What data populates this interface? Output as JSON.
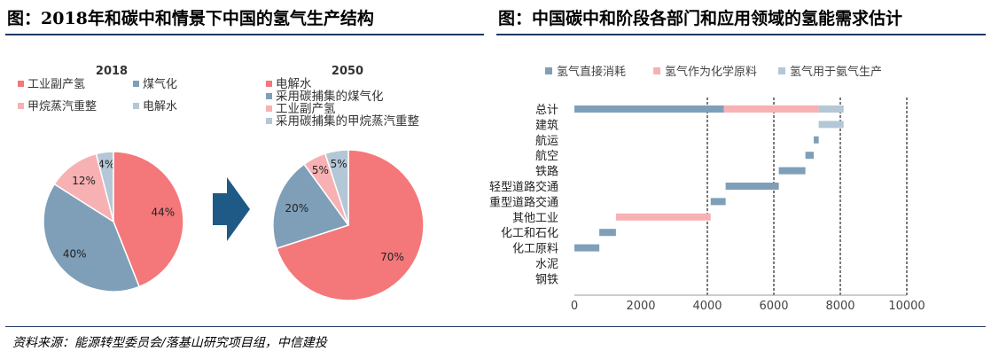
{
  "left_title": "图：2018年和碳中和情景下中国的氢气生产结构",
  "right_title": "图：中国碳中和阶段各部门和应用领域的氢能需求估计",
  "source": "资料来源：能源转型委员会/落基山研究项目组，中信建投",
  "chart_data": [
    {
      "type": "pie",
      "title": "2018",
      "legend": [
        "工业副产氢",
        "煤气化",
        "甲烷蒸汽重整",
        "电解水"
      ],
      "slices": [
        {
          "label": "电解水",
          "value": 4,
          "text": "4%",
          "color": "#b4c7d6"
        },
        {
          "label": "工业副产氢",
          "value": 44,
          "text": "44%",
          "color": "#f4777a"
        },
        {
          "label": "煤气化",
          "value": 40,
          "text": "40%",
          "color": "#7f9fb8"
        },
        {
          "label": "甲烷蒸汽重整",
          "value": 12,
          "text": "12%",
          "color": "#f7b1b3"
        }
      ]
    },
    {
      "type": "pie",
      "title": "2050",
      "legend": [
        "电解水",
        "采用碳捕集的煤气化",
        "工业副产氢",
        "采用碳捕集的甲烷蒸汽重整"
      ],
      "slices": [
        {
          "label": "电解水",
          "value": 70,
          "text": "70%",
          "color": "#f4777a"
        },
        {
          "label": "采用碳捕集的煤气化",
          "value": 20,
          "text": "20%",
          "color": "#7f9fb8"
        },
        {
          "label": "工业副产氢",
          "value": 5,
          "text": "5%",
          "color": "#f7b1b3"
        },
        {
          "label": "采用碳捕集的甲烷蒸汽重整",
          "value": 5,
          "text": "5%",
          "color": "#b4c7d6"
        }
      ]
    },
    {
      "type": "bar",
      "orientation": "horizontal",
      "stacked": "waterfall",
      "categories": [
        "总计",
        "建筑",
        "航运",
        "航空",
        "铁路",
        "轻型道路交通",
        "重型道路交通",
        "其他工业",
        "化工和石化",
        "化工原料",
        "水泥",
        "钢铁"
      ],
      "series": [
        {
          "name": "氢气直接消耗",
          "color": "#7f9fb8"
        },
        {
          "name": "氢气作为化学原料",
          "color": "#f7b1b3"
        },
        {
          "name": "氢气用于氨气生产",
          "color": "#b4c7d6"
        }
      ],
      "bars": [
        {
          "category": "总计",
          "segments": [
            {
              "series": "氢气直接消耗",
              "start": 0,
              "end": 4500
            },
            {
              "series": "氢气作为化学原料",
              "start": 4500,
              "end": 7350
            },
            {
              "series": "氢气用于氨气生产",
              "start": 7350,
              "end": 8100
            }
          ]
        },
        {
          "category": "建筑",
          "segments": [
            {
              "series": "氢气用于氨气生产",
              "start": 7350,
              "end": 8100
            }
          ]
        },
        {
          "category": "航运",
          "segments": [
            {
              "series": "氢气直接消耗",
              "start": 7200,
              "end": 7350
            }
          ]
        },
        {
          "category": "航空",
          "segments": [
            {
              "series": "氢气直接消耗",
              "start": 6950,
              "end": 7200
            }
          ]
        },
        {
          "category": "铁路",
          "segments": [
            {
              "series": "氢气直接消耗",
              "start": 6150,
              "end": 6950
            }
          ]
        },
        {
          "category": "轻型道路交通",
          "segments": [
            {
              "series": "氢气直接消耗",
              "start": 4550,
              "end": 6150
            }
          ]
        },
        {
          "category": "重型道路交通",
          "segments": [
            {
              "series": "氢气直接消耗",
              "start": 4100,
              "end": 4550
            }
          ]
        },
        {
          "category": "其他工业",
          "segments": [
            {
              "series": "氢气作为化学原料",
              "start": 1250,
              "end": 4100
            }
          ]
        },
        {
          "category": "化工和石化",
          "segments": [
            {
              "series": "氢气直接消耗",
              "start": 750,
              "end": 1250
            }
          ]
        },
        {
          "category": "化工原料",
          "segments": [
            {
              "series": "氢气直接消耗",
              "start": 0,
              "end": 750
            }
          ]
        },
        {
          "category": "水泥",
          "segments": []
        },
        {
          "category": "钢铁",
          "segments": []
        }
      ],
      "xlim": [
        0,
        10000
      ],
      "xticks": [
        0,
        2000,
        4000,
        6000,
        8000,
        10000
      ],
      "grid": "dashed vertical at 4000, 6000, 8000, 10000",
      "legend_position": "top"
    }
  ]
}
